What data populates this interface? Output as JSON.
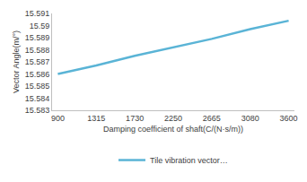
{
  "chart_data": {
    "type": "line",
    "x_label": "Damping coefficient of shaft(C/(N·s/m))",
    "y_label": "Vector Angle(m/°)",
    "categories": [
      "900",
      "1315",
      "1730",
      "2250",
      "2665",
      "3080",
      "3600"
    ],
    "series": [
      {
        "name": "Tile vibration vector…",
        "color": "#5ab4d6",
        "values": [
          15.586,
          15.5867,
          15.5875,
          15.5882,
          15.5889,
          15.5897,
          15.5904
        ]
      }
    ],
    "ylim": [
      15.583,
      15.591
    ],
    "yticks": [
      15.583,
      15.584,
      15.585,
      15.586,
      15.587,
      15.588,
      15.589,
      15.59,
      15.591
    ],
    "grid": false,
    "legend": "bottom"
  }
}
